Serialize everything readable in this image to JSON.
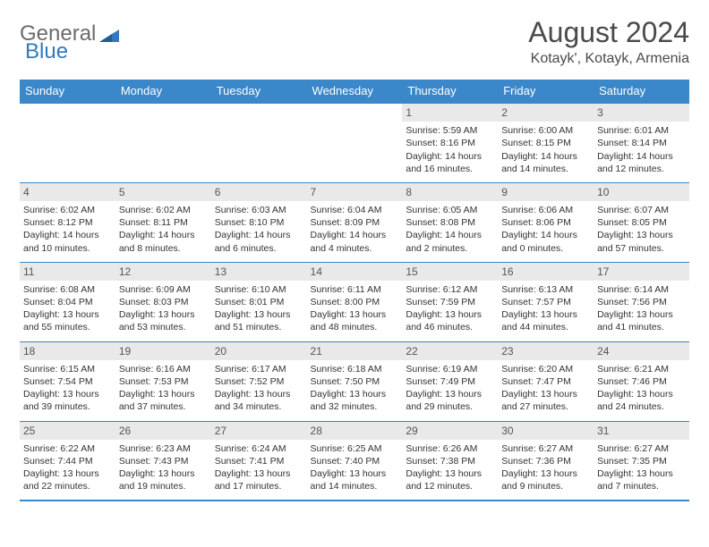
{
  "logo": {
    "part1": "General",
    "part2": "Blue"
  },
  "title": "August 2024",
  "location": "Kotayk', Kotayk, Armenia",
  "colors": {
    "header_bg": "#3a87c9",
    "header_fg": "#ffffff",
    "daynum_bg": "#e9e9e9",
    "border": "#3a87c9",
    "text": "#333333",
    "logo_gray": "#6b6b6b",
    "logo_blue": "#2f7ac0"
  },
  "weekdays": [
    "Sunday",
    "Monday",
    "Tuesday",
    "Wednesday",
    "Thursday",
    "Friday",
    "Saturday"
  ],
  "weeks": [
    [
      null,
      null,
      null,
      null,
      {
        "n": "1",
        "sr": "5:59 AM",
        "ss": "8:16 PM",
        "dl": "14 hours and 16 minutes."
      },
      {
        "n": "2",
        "sr": "6:00 AM",
        "ss": "8:15 PM",
        "dl": "14 hours and 14 minutes."
      },
      {
        "n": "3",
        "sr": "6:01 AM",
        "ss": "8:14 PM",
        "dl": "14 hours and 12 minutes."
      }
    ],
    [
      {
        "n": "4",
        "sr": "6:02 AM",
        "ss": "8:12 PM",
        "dl": "14 hours and 10 minutes."
      },
      {
        "n": "5",
        "sr": "6:02 AM",
        "ss": "8:11 PM",
        "dl": "14 hours and 8 minutes."
      },
      {
        "n": "6",
        "sr": "6:03 AM",
        "ss": "8:10 PM",
        "dl": "14 hours and 6 minutes."
      },
      {
        "n": "7",
        "sr": "6:04 AM",
        "ss": "8:09 PM",
        "dl": "14 hours and 4 minutes."
      },
      {
        "n": "8",
        "sr": "6:05 AM",
        "ss": "8:08 PM",
        "dl": "14 hours and 2 minutes."
      },
      {
        "n": "9",
        "sr": "6:06 AM",
        "ss": "8:06 PM",
        "dl": "14 hours and 0 minutes."
      },
      {
        "n": "10",
        "sr": "6:07 AM",
        "ss": "8:05 PM",
        "dl": "13 hours and 57 minutes."
      }
    ],
    [
      {
        "n": "11",
        "sr": "6:08 AM",
        "ss": "8:04 PM",
        "dl": "13 hours and 55 minutes."
      },
      {
        "n": "12",
        "sr": "6:09 AM",
        "ss": "8:03 PM",
        "dl": "13 hours and 53 minutes."
      },
      {
        "n": "13",
        "sr": "6:10 AM",
        "ss": "8:01 PM",
        "dl": "13 hours and 51 minutes."
      },
      {
        "n": "14",
        "sr": "6:11 AM",
        "ss": "8:00 PM",
        "dl": "13 hours and 48 minutes."
      },
      {
        "n": "15",
        "sr": "6:12 AM",
        "ss": "7:59 PM",
        "dl": "13 hours and 46 minutes."
      },
      {
        "n": "16",
        "sr": "6:13 AM",
        "ss": "7:57 PM",
        "dl": "13 hours and 44 minutes."
      },
      {
        "n": "17",
        "sr": "6:14 AM",
        "ss": "7:56 PM",
        "dl": "13 hours and 41 minutes."
      }
    ],
    [
      {
        "n": "18",
        "sr": "6:15 AM",
        "ss": "7:54 PM",
        "dl": "13 hours and 39 minutes."
      },
      {
        "n": "19",
        "sr": "6:16 AM",
        "ss": "7:53 PM",
        "dl": "13 hours and 37 minutes."
      },
      {
        "n": "20",
        "sr": "6:17 AM",
        "ss": "7:52 PM",
        "dl": "13 hours and 34 minutes."
      },
      {
        "n": "21",
        "sr": "6:18 AM",
        "ss": "7:50 PM",
        "dl": "13 hours and 32 minutes."
      },
      {
        "n": "22",
        "sr": "6:19 AM",
        "ss": "7:49 PM",
        "dl": "13 hours and 29 minutes."
      },
      {
        "n": "23",
        "sr": "6:20 AM",
        "ss": "7:47 PM",
        "dl": "13 hours and 27 minutes."
      },
      {
        "n": "24",
        "sr": "6:21 AM",
        "ss": "7:46 PM",
        "dl": "13 hours and 24 minutes."
      }
    ],
    [
      {
        "n": "25",
        "sr": "6:22 AM",
        "ss": "7:44 PM",
        "dl": "13 hours and 22 minutes."
      },
      {
        "n": "26",
        "sr": "6:23 AM",
        "ss": "7:43 PM",
        "dl": "13 hours and 19 minutes."
      },
      {
        "n": "27",
        "sr": "6:24 AM",
        "ss": "7:41 PM",
        "dl": "13 hours and 17 minutes."
      },
      {
        "n": "28",
        "sr": "6:25 AM",
        "ss": "7:40 PM",
        "dl": "13 hours and 14 minutes."
      },
      {
        "n": "29",
        "sr": "6:26 AM",
        "ss": "7:38 PM",
        "dl": "13 hours and 12 minutes."
      },
      {
        "n": "30",
        "sr": "6:27 AM",
        "ss": "7:36 PM",
        "dl": "13 hours and 9 minutes."
      },
      {
        "n": "31",
        "sr": "6:27 AM",
        "ss": "7:35 PM",
        "dl": "13 hours and 7 minutes."
      }
    ]
  ],
  "labels": {
    "sunrise": "Sunrise: ",
    "sunset": "Sunset: ",
    "daylight": "Daylight: "
  }
}
